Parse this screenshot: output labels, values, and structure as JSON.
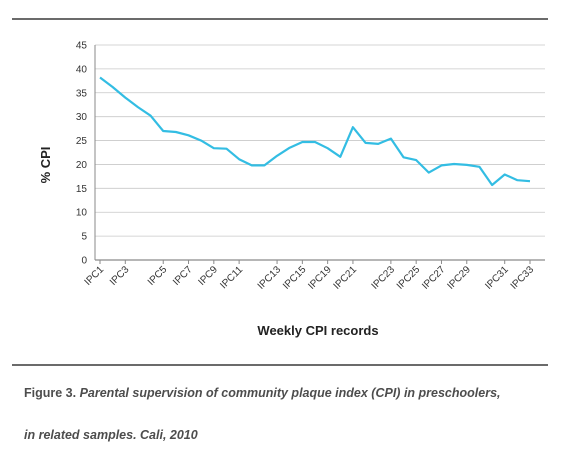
{
  "chart_data": {
    "type": "line",
    "ylabel": "% CPI",
    "xlabel": "Weekly CPI records",
    "ylim": [
      0,
      45
    ],
    "yticks": [
      0,
      5,
      10,
      15,
      20,
      25,
      30,
      35,
      40,
      45
    ],
    "grid": true,
    "legend": "none",
    "line_color": "#33bde3",
    "tick_labels": [
      "IPC1",
      "IPC3",
      "IPC5",
      "IPC7",
      "IPC9",
      "IPC11",
      "IPC13",
      "IPC15",
      "IPC19",
      "IPC21",
      "IPC23",
      "IPC25",
      "IPC27",
      "IPC29",
      "IPC31",
      "IPC33"
    ],
    "values": [
      38.2,
      36.2,
      34,
      32,
      30.2,
      27,
      26.8,
      26.1,
      25,
      23.4,
      23.3,
      21.1,
      19.8,
      19.8,
      21.8,
      23.5,
      24.7,
      24.7,
      23.4,
      21.6,
      27.8,
      24.5,
      24.3,
      25.4,
      21.5,
      20.9,
      18.3,
      19.8,
      20.1,
      19.9,
      19.5,
      15.7,
      17.9,
      16.7,
      16.5
    ]
  },
  "caption": {
    "figure": "Figure 3.",
    "line1": "Parental supervision of community plaque index (CPI) in preschoolers,",
    "line2": "in related samples. Cali, 2010"
  }
}
